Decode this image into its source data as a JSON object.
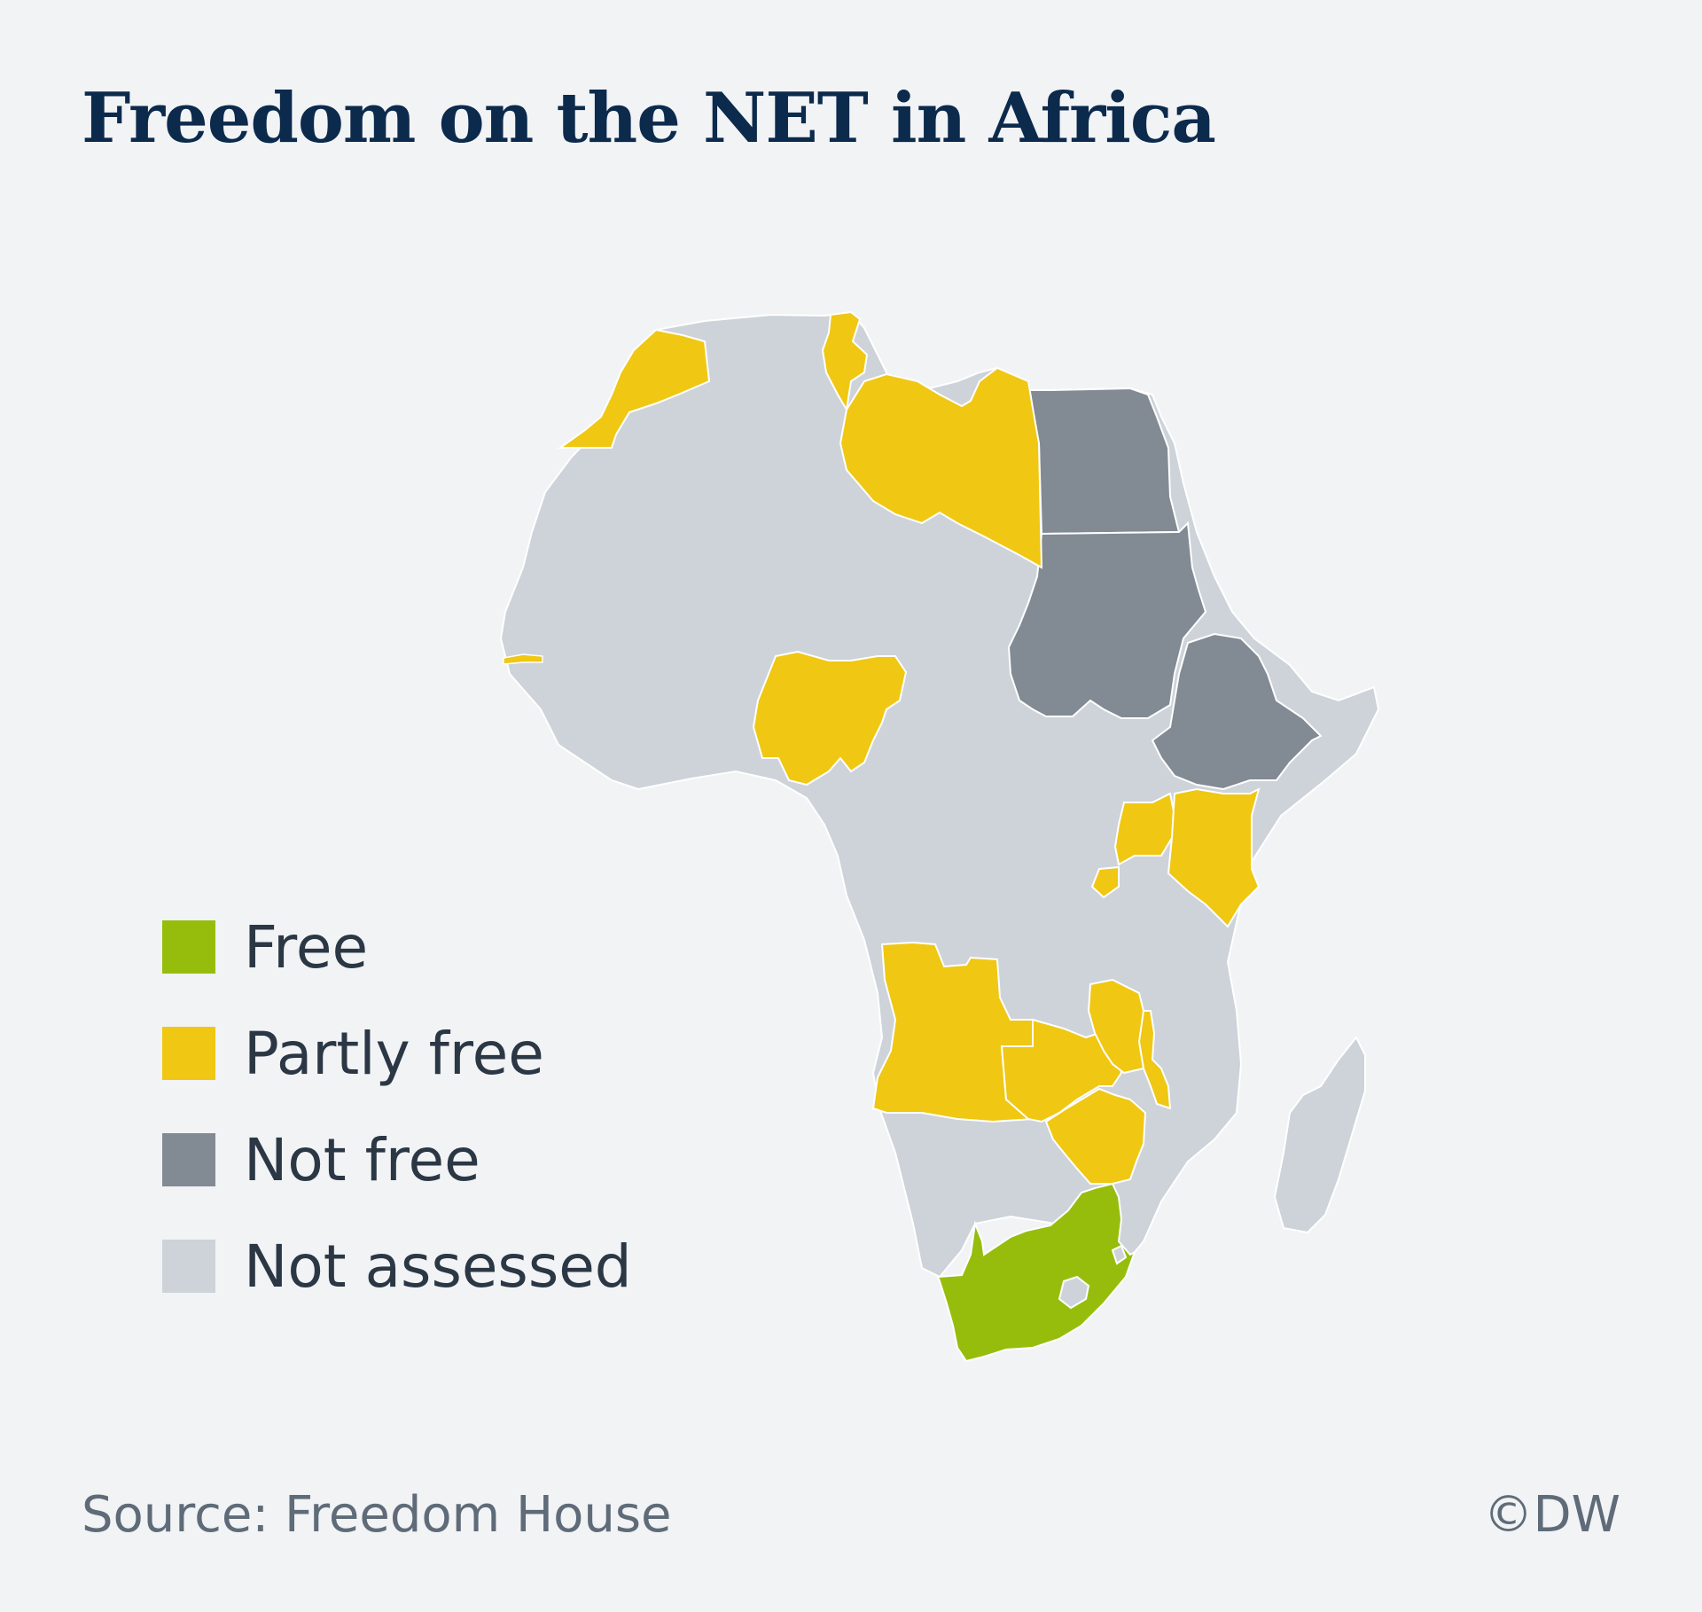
{
  "title": "Freedom on the NET in Africa",
  "legend": [
    {
      "label": "Free",
      "color": "#97bd0c"
    },
    {
      "label": "Partly free",
      "color": "#f0c712"
    },
    {
      "label": "Not free",
      "color": "#828a94"
    },
    {
      "label": "Not assessed",
      "color": "#cdd3d9"
    }
  ],
  "colors": {
    "free": "#97bd0c",
    "partly_free": "#f0c712",
    "not_free": "#828a94",
    "not_assessed": "#cdd3d9",
    "border": "#ffffff"
  },
  "countries": {
    "free": [
      "South Africa"
    ],
    "partly_free": [
      "Morocco",
      "Tunisia",
      "Libya",
      "Nigeria",
      "The Gambia",
      "Uganda",
      "Kenya",
      "Rwanda",
      "Angola",
      "Zambia",
      "Malawi",
      "Zimbabwe"
    ],
    "not_free": [
      "Egypt",
      "Sudan",
      "Ethiopia"
    ]
  },
  "footer": {
    "source": "Source: Freedom House",
    "copyright": "©DW"
  }
}
